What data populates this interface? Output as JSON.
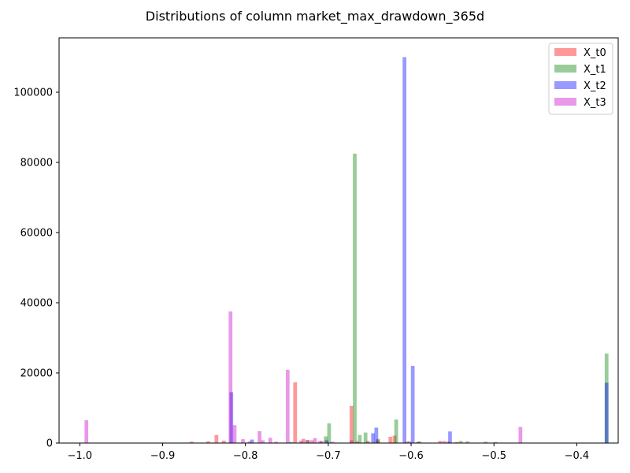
{
  "chart_data": {
    "type": "bar",
    "title": "Distributions of column market_max_drawdown_365d",
    "xlabel": "",
    "ylabel": "",
    "xlim": [
      -1.025,
      -0.35
    ],
    "ylim": [
      0,
      115500
    ],
    "bar_width": 0.0045,
    "x_ticks": [
      -1.0,
      -0.9,
      -0.8,
      -0.7,
      -0.6,
      -0.5,
      -0.4
    ],
    "x_tick_labels": [
      "−1.0",
      "−0.9",
      "−0.8",
      "−0.7",
      "−0.6",
      "−0.5",
      "−0.4"
    ],
    "y_ticks": [
      0,
      20000,
      40000,
      60000,
      80000,
      100000
    ],
    "y_tick_labels": [
      "0",
      "20000",
      "40000",
      "60000",
      "80000",
      "100000"
    ],
    "legend_position": "top-right",
    "grid": false,
    "series": [
      {
        "name": "X_t0",
        "color": "#ff0000",
        "opacity": 0.4,
        "points": [
          [
            -0.865,
            400
          ],
          [
            -0.845,
            500
          ],
          [
            -0.835,
            2300
          ],
          [
            -0.826,
            700
          ],
          [
            -0.74,
            17300
          ],
          [
            -0.73,
            1200
          ],
          [
            -0.72,
            800
          ],
          [
            -0.708,
            600
          ],
          [
            -0.672,
            10600
          ],
          [
            -0.665,
            500
          ],
          [
            -0.652,
            600
          ],
          [
            -0.64,
            800
          ],
          [
            -0.625,
            1800
          ],
          [
            -0.62,
            2100
          ],
          [
            -0.605,
            400
          ],
          [
            -0.592,
            300
          ],
          [
            -0.565,
            600
          ],
          [
            -0.555,
            400
          ],
          [
            -0.545,
            300
          ]
        ]
      },
      {
        "name": "X_t1",
        "color": "#008000",
        "opacity": 0.4,
        "points": [
          [
            -0.745,
            300
          ],
          [
            -0.725,
            800
          ],
          [
            -0.703,
            1900
          ],
          [
            -0.699,
            5600
          ],
          [
            -0.668,
            82500
          ],
          [
            -0.662,
            2300
          ],
          [
            -0.655,
            3000
          ],
          [
            -0.64,
            1200
          ],
          [
            -0.618,
            6700
          ],
          [
            -0.59,
            500
          ],
          [
            -0.54,
            600
          ],
          [
            -0.532,
            500
          ],
          [
            -0.51,
            400
          ],
          [
            -0.498,
            300
          ],
          [
            -0.364,
            25500
          ]
        ]
      },
      {
        "name": "X_t2",
        "color": "#0000ff",
        "opacity": 0.4,
        "points": [
          [
            -0.817,
            14500
          ],
          [
            -0.792,
            1000
          ],
          [
            -0.702,
            800
          ],
          [
            -0.646,
            2800
          ],
          [
            -0.642,
            4400
          ],
          [
            -0.608,
            110000
          ],
          [
            -0.598,
            22000
          ],
          [
            -0.553,
            3300
          ],
          [
            -0.364,
            17200
          ]
        ]
      },
      {
        "name": "X_t3",
        "color": "#c800c8",
        "opacity": 0.4,
        "points": [
          [
            -0.992,
            6500
          ],
          [
            -0.818,
            37500
          ],
          [
            -0.813,
            5100
          ],
          [
            -0.803,
            1100
          ],
          [
            -0.795,
            500
          ],
          [
            -0.783,
            3400
          ],
          [
            -0.779,
            800
          ],
          [
            -0.77,
            1500
          ],
          [
            -0.763,
            400
          ],
          [
            -0.749,
            20900
          ],
          [
            -0.733,
            700
          ],
          [
            -0.725,
            900
          ],
          [
            -0.716,
            1400
          ],
          [
            -0.71,
            600
          ],
          [
            -0.695,
            400
          ],
          [
            -0.672,
            800
          ],
          [
            -0.602,
            500
          ],
          [
            -0.56,
            600
          ],
          [
            -0.468,
            4600
          ]
        ]
      }
    ]
  }
}
